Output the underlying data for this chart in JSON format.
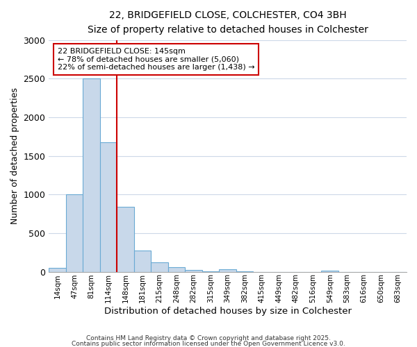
{
  "title": "22, BRIDGEFIELD CLOSE, COLCHESTER, CO4 3BH",
  "subtitle": "Size of property relative to detached houses in Colchester",
  "xlabel": "Distribution of detached houses by size in Colchester",
  "ylabel": "Number of detached properties",
  "bar_labels": [
    "14sqm",
    "47sqm",
    "81sqm",
    "114sqm",
    "148sqm",
    "181sqm",
    "215sqm",
    "248sqm",
    "282sqm",
    "315sqm",
    "349sqm",
    "382sqm",
    "415sqm",
    "449sqm",
    "482sqm",
    "516sqm",
    "549sqm",
    "583sqm",
    "616sqm",
    "650sqm",
    "683sqm"
  ],
  "bar_values": [
    50,
    1000,
    2500,
    1680,
    840,
    270,
    120,
    55,
    25,
    5,
    30,
    5,
    0,
    0,
    0,
    0,
    10,
    0,
    0,
    0,
    0
  ],
  "bar_color": "#c8d8ea",
  "bar_edge_color": "#6aaad4",
  "vline_x": 3.5,
  "vline_color": "#cc0000",
  "annotation_text": "22 BRIDGEFIELD CLOSE: 145sqm\n← 78% of detached houses are smaller (5,060)\n22% of semi-detached houses are larger (1,438) →",
  "annotation_box_color": "#ffffff",
  "annotation_box_edge_color": "#cc0000",
  "ylim": [
    0,
    3000
  ],
  "yticks": [
    0,
    500,
    1000,
    1500,
    2000,
    2500,
    3000
  ],
  "footer1": "Contains HM Land Registry data © Crown copyright and database right 2025.",
  "footer2": "Contains public sector information licensed under the Open Government Licence v3.0.",
  "background_color": "#ffffff",
  "grid_color": "#ccd8e8"
}
